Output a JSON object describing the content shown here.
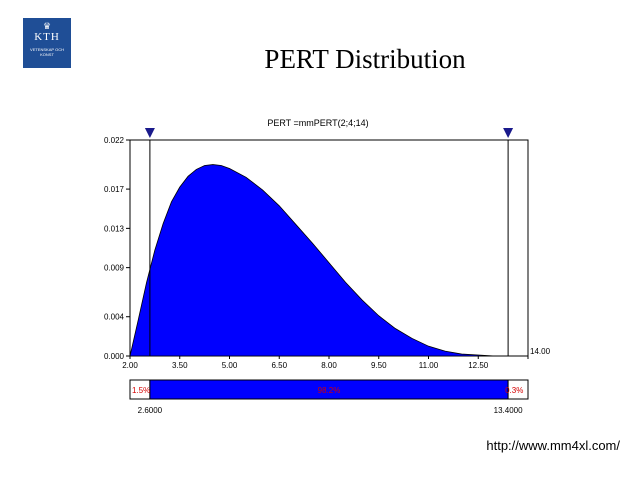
{
  "slide": {
    "logo_text": "KTH",
    "logo_sub": "VETENSKAP OCH KONST",
    "title": "PERT Distribution",
    "url": "http://www.mm4xl.com/"
  },
  "chart_data": {
    "type": "area",
    "title": "PERT =mmPERT(2;4;14)",
    "distribution": {
      "name": "PERT",
      "min": 2,
      "mode": 4,
      "max": 14
    },
    "x_ticks": [
      "2.00",
      "3.50",
      "5.00",
      "6.50",
      "8.00",
      "9.50",
      "11.00",
      "12.50",
      "14.00"
    ],
    "y_ticks": [
      "0.000",
      "0.004",
      "0.009",
      "0.013",
      "0.017",
      "0.022"
    ],
    "xlim": [
      2.0,
      14.0
    ],
    "ylim": [
      0.0,
      0.022
    ],
    "x": [
      2.0,
      2.25,
      2.5,
      2.75,
      3.0,
      3.25,
      3.5,
      3.75,
      4.0,
      4.25,
      4.5,
      4.75,
      5.0,
      5.5,
      6.0,
      6.5,
      7.0,
      7.5,
      8.0,
      8.5,
      9.0,
      9.5,
      10.0,
      10.5,
      11.0,
      11.5,
      12.0,
      12.5,
      13.0,
      13.5,
      14.0
    ],
    "y": [
      0.0,
      0.0037,
      0.0075,
      0.0108,
      0.0135,
      0.0157,
      0.0172,
      0.0183,
      0.019,
      0.0194,
      0.0195,
      0.0194,
      0.0191,
      0.0182,
      0.0169,
      0.0153,
      0.0134,
      0.0115,
      0.0095,
      0.0075,
      0.0057,
      0.0041,
      0.0028,
      0.0018,
      0.001,
      0.0005,
      0.0002,
      0.0001,
      0.0,
      0.0,
      0.0
    ],
    "left_marker": 2.6,
    "right_marker": 13.4,
    "left_marker_label": "2.6000",
    "right_marker_label": "13.4000",
    "left_pct": "1.5%",
    "middle_pct": "98.2%",
    "right_pct": "0.3%",
    "grid": false,
    "fill_color": "#0000ff",
    "pct_color": "#d40000",
    "marker_color": "#1a1a8c"
  }
}
